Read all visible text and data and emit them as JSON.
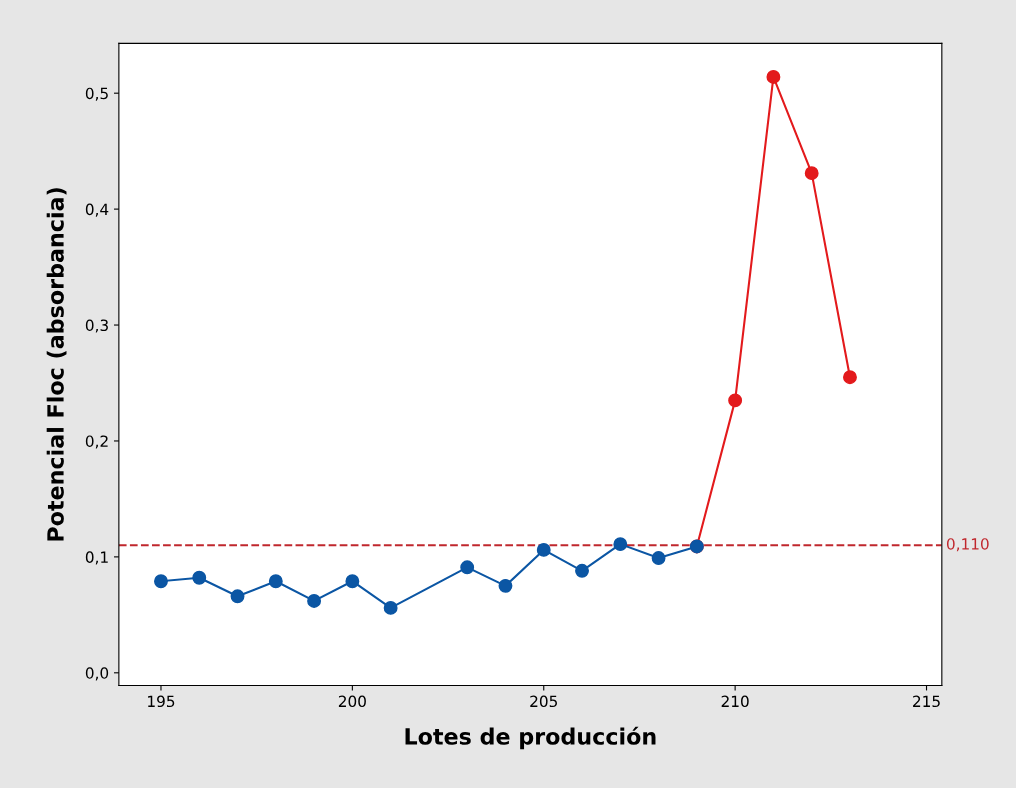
{
  "chart_data": {
    "type": "line",
    "xlabel": "Lotes de producción",
    "ylabel": "Potencial Floc (absorbancia)",
    "series": [
      {
        "color": "#e31a1c",
        "x": [
          209,
          210,
          211,
          212,
          213
        ],
        "values": [
          0.109,
          0.235,
          0.514,
          0.431,
          0.255
        ]
      },
      {
        "color": "#0b56a4",
        "x": [
          195,
          196,
          197,
          198,
          199,
          200,
          201,
          203,
          204,
          205,
          206,
          207,
          208,
          209
        ],
        "values": [
          0.079,
          0.082,
          0.066,
          0.079,
          0.062,
          0.079,
          0.056,
          0.091,
          0.075,
          0.106,
          0.088,
          0.111,
          0.099,
          0.109
        ]
      }
    ],
    "xlim": [
      193.9,
      215.4
    ],
    "xticks": [
      195,
      200,
      205,
      210,
      215
    ],
    "ylim": [
      -0.011,
      0.543
    ],
    "yticks": [
      {
        "value": 0.0,
        "label": "0,0"
      },
      {
        "value": 0.1,
        "label": "0,1"
      },
      {
        "value": 0.2,
        "label": "0,2"
      },
      {
        "value": 0.3,
        "label": "0,3"
      },
      {
        "value": 0.4,
        "label": "0,4"
      },
      {
        "value": 0.5,
        "label": "0,5"
      }
    ],
    "ref_lines": [
      {
        "axis": "y",
        "value": 0.11,
        "label": "0,110",
        "color": "#c0272d",
        "line_style": "dashed"
      }
    ],
    "marker": "circle",
    "line_style": "solid",
    "grid": false,
    "legend": false
  }
}
